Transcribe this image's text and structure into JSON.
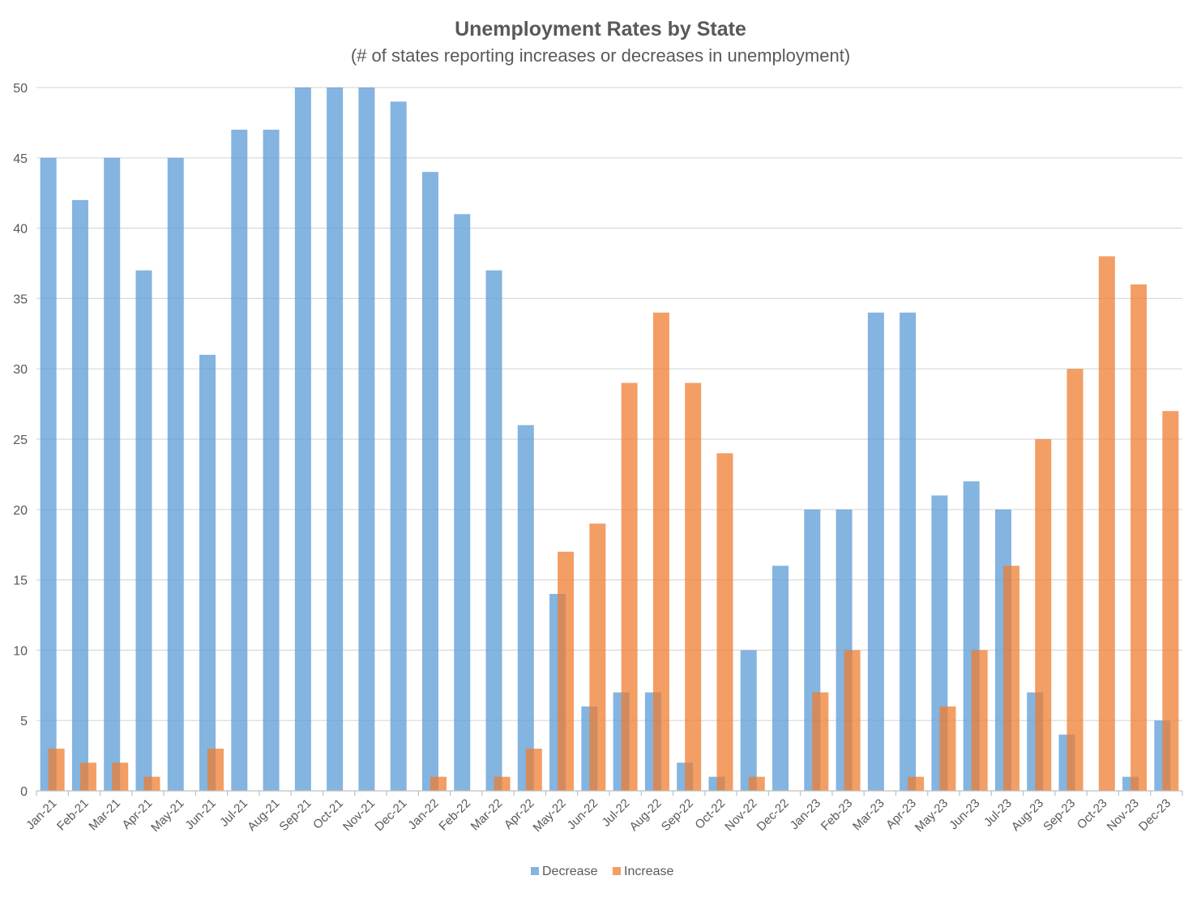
{
  "chart_data": {
    "type": "bar",
    "title": "Unemployment Rates by State",
    "subtitle": "(# of states reporting increases or decreases in unemployment)",
    "xlabel": "",
    "ylabel": "",
    "ylim": [
      0,
      50
    ],
    "yticks": [
      0,
      5,
      10,
      15,
      20,
      25,
      30,
      35,
      40,
      45,
      50
    ],
    "grid": true,
    "legend_position": "bottom",
    "categories": [
      "Jan-21",
      "Feb-21",
      "Mar-21",
      "Apr-21",
      "May-21",
      "Jun-21",
      "Jul-21",
      "Aug-21",
      "Sep-21",
      "Oct-21",
      "Nov-21",
      "Dec-21",
      "Jan-22",
      "Feb-22",
      "Mar-22",
      "Apr-22",
      "May-22",
      "Jun-22",
      "Jul-22",
      "Aug-22",
      "Sep-22",
      "Oct-22",
      "Nov-22",
      "Dec-22",
      "Jan-23",
      "Feb-23",
      "Mar-23",
      "Apr-23",
      "May-23",
      "Jun-23",
      "Jul-23",
      "Aug-23",
      "Sep-23",
      "Oct-23",
      "Nov-23",
      "Dec-23"
    ],
    "series": [
      {
        "name": "Decrease",
        "color": "#5B9BD5",
        "values": [
          45,
          42,
          45,
          37,
          45,
          31,
          47,
          47,
          50,
          50,
          50,
          49,
          44,
          41,
          37,
          26,
          14,
          6,
          7,
          7,
          2,
          1,
          10,
          16,
          20,
          20,
          34,
          34,
          21,
          22,
          20,
          7,
          4,
          0,
          1,
          5
        ]
      },
      {
        "name": "Increase",
        "color": "#ED7D31",
        "values": [
          3,
          2,
          2,
          1,
          0,
          3,
          0,
          0,
          0,
          0,
          0,
          0,
          1,
          0,
          1,
          3,
          17,
          19,
          29,
          34,
          29,
          24,
          1,
          0,
          7,
          10,
          0,
          1,
          6,
          10,
          16,
          25,
          30,
          38,
          36,
          27
        ]
      }
    ]
  }
}
